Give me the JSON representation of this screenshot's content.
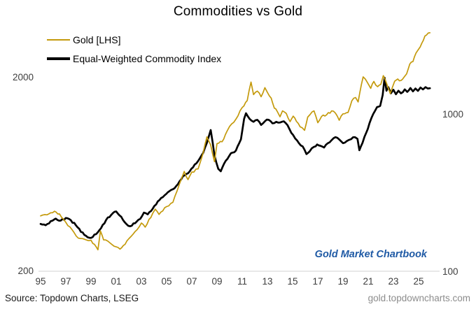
{
  "title": "Commodities vs Gold",
  "legend": {
    "items": [
      {
        "label": "Gold [LHS]",
        "color": "#C49A0C"
      },
      {
        "label": "Equal-Weighted Commodity Index",
        "color": "#000000"
      }
    ]
  },
  "watermark": {
    "text": "Gold Market Chartbook",
    "color": "#1F5AA5"
  },
  "footer": {
    "source": "Source: Topdown Charts, LSEG",
    "url": "gold.topdowncharts.com"
  },
  "colors": {
    "gold_line": "#C49A0C",
    "commodity_line": "#000000",
    "axis_text": "#3d3d3d",
    "gridline": "#D9D9D9",
    "watermark_blue": "#1F5AA5",
    "url_gray": "#8c8c8c",
    "background": "#ffffff"
  },
  "chart_data": {
    "type": "line",
    "title": "Commodities vs Gold",
    "grid": "bottom-line-only",
    "legend_position": "top-left-inside",
    "x_axis": {
      "ticks": [
        {
          "year": 1995,
          "label": "95"
        },
        {
          "year": 1997,
          "label": "97"
        },
        {
          "year": 1999,
          "label": "99"
        },
        {
          "year": 2001,
          "label": "01"
        },
        {
          "year": 2003,
          "label": "03"
        },
        {
          "year": 2005,
          "label": "05"
        },
        {
          "year": 2007,
          "label": "07"
        },
        {
          "year": 2009,
          "label": "09"
        },
        {
          "year": 2011,
          "label": "11"
        },
        {
          "year": 2013,
          "label": "13"
        },
        {
          "year": 2015,
          "label": "15"
        },
        {
          "year": 2017,
          "label": "17"
        },
        {
          "year": 2019,
          "label": "19"
        },
        {
          "year": 2021,
          "label": "21"
        },
        {
          "year": 2023,
          "label": "23"
        },
        {
          "year": 2025,
          "label": "25"
        }
      ],
      "range": [
        1995,
        2025.9
      ]
    },
    "y_axis_left": {
      "scale": "log",
      "series": "Gold [LHS]",
      "ticks": [
        {
          "value": 2000,
          "label": "2000"
        },
        {
          "value": 200,
          "label": "200"
        }
      ],
      "range": [
        200,
        3600
      ]
    },
    "y_axis_right": {
      "scale": "log",
      "series": "Equal-Weighted Commodity Index",
      "ticks": [
        {
          "value": 1000,
          "label": "1000"
        },
        {
          "value": 100,
          "label": "100"
        }
      ],
      "range": [
        100,
        1800
      ]
    },
    "series": [
      {
        "name": "Gold [LHS]",
        "axis": "left",
        "color": "#C49A0C",
        "width": 1.7,
        "points": [
          [
            1995.0,
            383
          ],
          [
            1995.5,
            388
          ],
          [
            1996.1,
            405
          ],
          [
            1996.5,
            392
          ],
          [
            1997.0,
            355
          ],
          [
            1997.5,
            325
          ],
          [
            1998.0,
            294
          ],
          [
            1998.5,
            290
          ],
          [
            1999.0,
            287
          ],
          [
            1999.55,
            256
          ],
          [
            1999.75,
            320
          ],
          [
            2000.0,
            288
          ],
          [
            2000.5,
            278
          ],
          [
            2001.0,
            265
          ],
          [
            2001.3,
            258
          ],
          [
            2001.7,
            273
          ],
          [
            2002.0,
            292
          ],
          [
            2002.5,
            318
          ],
          [
            2003.0,
            352
          ],
          [
            2003.3,
            335
          ],
          [
            2003.9,
            395
          ],
          [
            2004.1,
            415
          ],
          [
            2004.4,
            390
          ],
          [
            2005.0,
            428
          ],
          [
            2005.5,
            450
          ],
          [
            2006.0,
            555
          ],
          [
            2006.4,
            650
          ],
          [
            2006.7,
            590
          ],
          [
            2007.0,
            645
          ],
          [
            2007.5,
            670
          ],
          [
            2007.9,
            810
          ],
          [
            2008.2,
            980
          ],
          [
            2008.5,
            890
          ],
          [
            2008.8,
            730
          ],
          [
            2009.0,
            905
          ],
          [
            2009.4,
            925
          ],
          [
            2009.8,
            1050
          ],
          [
            2010.0,
            1110
          ],
          [
            2010.5,
            1210
          ],
          [
            2011.0,
            1390
          ],
          [
            2011.4,
            1510
          ],
          [
            2011.7,
            1880
          ],
          [
            2011.9,
            1620
          ],
          [
            2012.2,
            1690
          ],
          [
            2012.5,
            1580
          ],
          [
            2012.8,
            1760
          ],
          [
            2013.0,
            1665
          ],
          [
            2013.3,
            1555
          ],
          [
            2013.55,
            1380
          ],
          [
            2013.8,
            1320
          ],
          [
            2014.0,
            1245
          ],
          [
            2014.2,
            1335
          ],
          [
            2014.5,
            1295
          ],
          [
            2014.8,
            1175
          ],
          [
            2015.05,
            1255
          ],
          [
            2015.3,
            1180
          ],
          [
            2015.6,
            1105
          ],
          [
            2015.95,
            1060
          ],
          [
            2016.2,
            1240
          ],
          [
            2016.55,
            1320
          ],
          [
            2016.7,
            1335
          ],
          [
            2017.0,
            1160
          ],
          [
            2017.3,
            1250
          ],
          [
            2017.7,
            1275
          ],
          [
            2018.1,
            1335
          ],
          [
            2018.4,
            1300
          ],
          [
            2018.7,
            1195
          ],
          [
            2019.0,
            1290
          ],
          [
            2019.4,
            1310
          ],
          [
            2019.7,
            1505
          ],
          [
            2020.0,
            1565
          ],
          [
            2020.2,
            1485
          ],
          [
            2020.6,
            2000
          ],
          [
            2020.95,
            1865
          ],
          [
            2021.2,
            1745
          ],
          [
            2021.45,
            1895
          ],
          [
            2021.75,
            1780
          ],
          [
            2022.0,
            1830
          ],
          [
            2022.2,
            2030
          ],
          [
            2022.75,
            1640
          ],
          [
            2023.1,
            1900
          ],
          [
            2023.35,
            1950
          ],
          [
            2023.6,
            1915
          ],
          [
            2023.85,
            1995
          ],
          [
            2024.05,
            2075
          ],
          [
            2024.3,
            2330
          ],
          [
            2024.55,
            2400
          ],
          [
            2024.8,
            2660
          ],
          [
            2025.0,
            2780
          ],
          [
            2025.25,
            2980
          ],
          [
            2025.5,
            3250
          ],
          [
            2025.9,
            3380
          ]
        ]
      },
      {
        "name": "Equal-Weighted Commodity Index",
        "axis": "right",
        "color": "#000000",
        "width": 2.7,
        "points": [
          [
            1995.0,
            200
          ],
          [
            1995.4,
            196
          ],
          [
            1995.8,
            208
          ],
          [
            1996.2,
            216
          ],
          [
            1996.6,
            210
          ],
          [
            1997.0,
            218
          ],
          [
            1997.4,
            211
          ],
          [
            1997.8,
            196
          ],
          [
            1998.2,
            178
          ],
          [
            1998.6,
            168
          ],
          [
            1999.0,
            163
          ],
          [
            1999.4,
            172
          ],
          [
            1999.8,
            188
          ],
          [
            2000.2,
            212
          ],
          [
            2000.6,
            228
          ],
          [
            2001.0,
            240
          ],
          [
            2001.4,
            222
          ],
          [
            2001.8,
            200
          ],
          [
            2002.1,
            193
          ],
          [
            2002.5,
            202
          ],
          [
            2002.9,
            215
          ],
          [
            2003.2,
            236
          ],
          [
            2003.5,
            230
          ],
          [
            2003.9,
            250
          ],
          [
            2004.3,
            278
          ],
          [
            2004.7,
            296
          ],
          [
            2005.1,
            318
          ],
          [
            2005.5,
            332
          ],
          [
            2005.9,
            358
          ],
          [
            2006.3,
            402
          ],
          [
            2006.7,
            420
          ],
          [
            2007.1,
            458
          ],
          [
            2007.5,
            502
          ],
          [
            2007.9,
            565
          ],
          [
            2008.2,
            655
          ],
          [
            2008.5,
            790
          ],
          [
            2008.8,
            545
          ],
          [
            2009.1,
            448
          ],
          [
            2009.3,
            432
          ],
          [
            2009.7,
            505
          ],
          [
            2010.1,
            562
          ],
          [
            2010.5,
            585
          ],
          [
            2010.9,
            690
          ],
          [
            2011.15,
            930
          ],
          [
            2011.3,
            1010
          ],
          [
            2011.6,
            928
          ],
          [
            2011.9,
            892
          ],
          [
            2012.2,
            918
          ],
          [
            2012.5,
            852
          ],
          [
            2012.8,
            898
          ],
          [
            2013.1,
            918
          ],
          [
            2013.4,
            872
          ],
          [
            2013.7,
            892
          ],
          [
            2014.0,
            882
          ],
          [
            2014.3,
            898
          ],
          [
            2014.6,
            848
          ],
          [
            2014.9,
            758
          ],
          [
            2015.2,
            700
          ],
          [
            2015.5,
            652
          ],
          [
            2015.8,
            622
          ],
          [
            2016.1,
            556
          ],
          [
            2016.35,
            578
          ],
          [
            2016.7,
            618
          ],
          [
            2016.95,
            640
          ],
          [
            2017.2,
            628
          ],
          [
            2017.5,
            612
          ],
          [
            2017.8,
            652
          ],
          [
            2018.1,
            682
          ],
          [
            2018.4,
            712
          ],
          [
            2018.7,
            688
          ],
          [
            2019.0,
            652
          ],
          [
            2019.3,
            672
          ],
          [
            2019.65,
            692
          ],
          [
            2019.95,
            712
          ],
          [
            2020.15,
            695
          ],
          [
            2020.3,
            588
          ],
          [
            2020.55,
            655
          ],
          [
            2020.85,
            762
          ],
          [
            2021.1,
            872
          ],
          [
            2021.4,
            1000
          ],
          [
            2021.7,
            1105
          ],
          [
            2021.95,
            1125
          ],
          [
            2022.15,
            1320
          ],
          [
            2022.3,
            1700
          ],
          [
            2022.45,
            1405
          ],
          [
            2022.6,
            1480
          ],
          [
            2022.8,
            1352
          ],
          [
            2023.0,
            1425
          ],
          [
            2023.2,
            1335
          ],
          [
            2023.4,
            1405
          ],
          [
            2023.6,
            1352
          ],
          [
            2023.9,
            1432
          ],
          [
            2024.1,
            1382
          ],
          [
            2024.35,
            1462
          ],
          [
            2024.55,
            1392
          ],
          [
            2024.75,
            1452
          ],
          [
            2024.95,
            1402
          ],
          [
            2025.15,
            1472
          ],
          [
            2025.35,
            1432
          ],
          [
            2025.55,
            1482
          ],
          [
            2025.9,
            1458
          ]
        ]
      }
    ]
  }
}
